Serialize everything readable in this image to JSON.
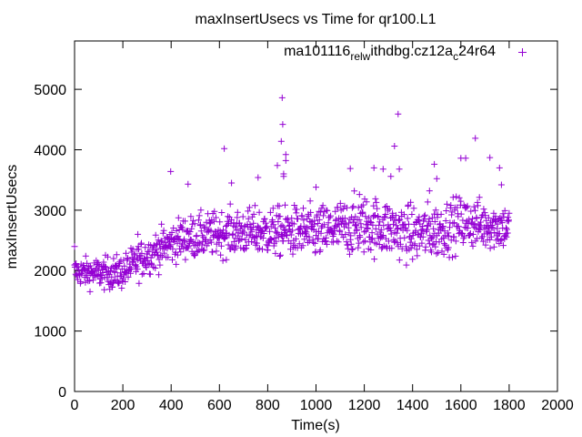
{
  "colors": {
    "series": "#9400d3",
    "axis": "#000000",
    "background": "#ffffff"
  },
  "chart_data": {
    "type": "scatter",
    "title": "maxInsertUsecs vs Time for qr100.L1",
    "xlabel": "Time(s)",
    "ylabel": "maxInsertUsecs",
    "xlim": [
      0,
      2000
    ],
    "ylim": [
      0,
      5800
    ],
    "xticks": [
      0,
      200,
      400,
      600,
      800,
      1000,
      1200,
      1400,
      1600,
      1800,
      2000
    ],
    "yticks": [
      0,
      1000,
      2000,
      3000,
      4000,
      5000
    ],
    "legend": {
      "position": "top-right",
      "label_parts": [
        {
          "text": "ma101116",
          "shift": "none"
        },
        {
          "text": "rel",
          "shift": "sub"
        },
        {
          "text": "w",
          "shift": "sub"
        },
        {
          "text": "ithdbg.cz12a",
          "shift": "none"
        },
        {
          "text": "c",
          "shift": "sub"
        },
        {
          "text": "24r64",
          "shift": "none"
        }
      ],
      "marker": "+"
    },
    "series": [
      {
        "name": "ma101116_rel_withdbg.cz12a_c24r64",
        "marker": "+",
        "baseline": [
          [
            0,
            1980
          ],
          [
            50,
            1970
          ],
          [
            100,
            1960
          ],
          [
            150,
            1960
          ],
          [
            200,
            1980
          ],
          [
            250,
            2120
          ],
          [
            300,
            2250
          ],
          [
            350,
            2350
          ],
          [
            400,
            2450
          ],
          [
            450,
            2550
          ],
          [
            500,
            2560
          ],
          [
            550,
            2580
          ],
          [
            600,
            2620
          ],
          [
            700,
            2640
          ],
          [
            800,
            2640
          ],
          [
            900,
            2650
          ],
          [
            1000,
            2620
          ],
          [
            1100,
            2700
          ],
          [
            1200,
            2760
          ],
          [
            1300,
            2700
          ],
          [
            1400,
            2600
          ],
          [
            1500,
            2660
          ],
          [
            1600,
            2800
          ],
          [
            1700,
            2760
          ],
          [
            1800,
            2720
          ]
        ],
        "spread": [
          [
            0,
            160
          ],
          [
            200,
            200
          ],
          [
            400,
            240
          ],
          [
            800,
            280
          ],
          [
            1200,
            340
          ],
          [
            1500,
            320
          ],
          [
            1800,
            260
          ]
        ],
        "outliers": [
          [
            0,
            2400
          ],
          [
            262,
            2600
          ],
          [
            398,
            3640
          ],
          [
            470,
            3430
          ],
          [
            620,
            4020
          ],
          [
            650,
            3450
          ],
          [
            760,
            3540
          ],
          [
            840,
            3740
          ],
          [
            856,
            4140
          ],
          [
            860,
            4860
          ],
          [
            862,
            4420
          ],
          [
            866,
            3600
          ],
          [
            866,
            3560
          ],
          [
            875,
            3920
          ],
          [
            875,
            3820
          ],
          [
            1000,
            3380
          ],
          [
            1142,
            3690
          ],
          [
            1180,
            3260
          ],
          [
            1240,
            3700
          ],
          [
            1278,
            3680
          ],
          [
            1310,
            3560
          ],
          [
            1325,
            4060
          ],
          [
            1340,
            4590
          ],
          [
            1345,
            3680
          ],
          [
            1470,
            3320
          ],
          [
            1490,
            3760
          ],
          [
            1500,
            3520
          ],
          [
            1600,
            3860
          ],
          [
            1620,
            3860
          ],
          [
            1660,
            4190
          ],
          [
            1720,
            3870
          ],
          [
            1760,
            3700
          ],
          [
            1768,
            3420
          ]
        ]
      }
    ]
  }
}
